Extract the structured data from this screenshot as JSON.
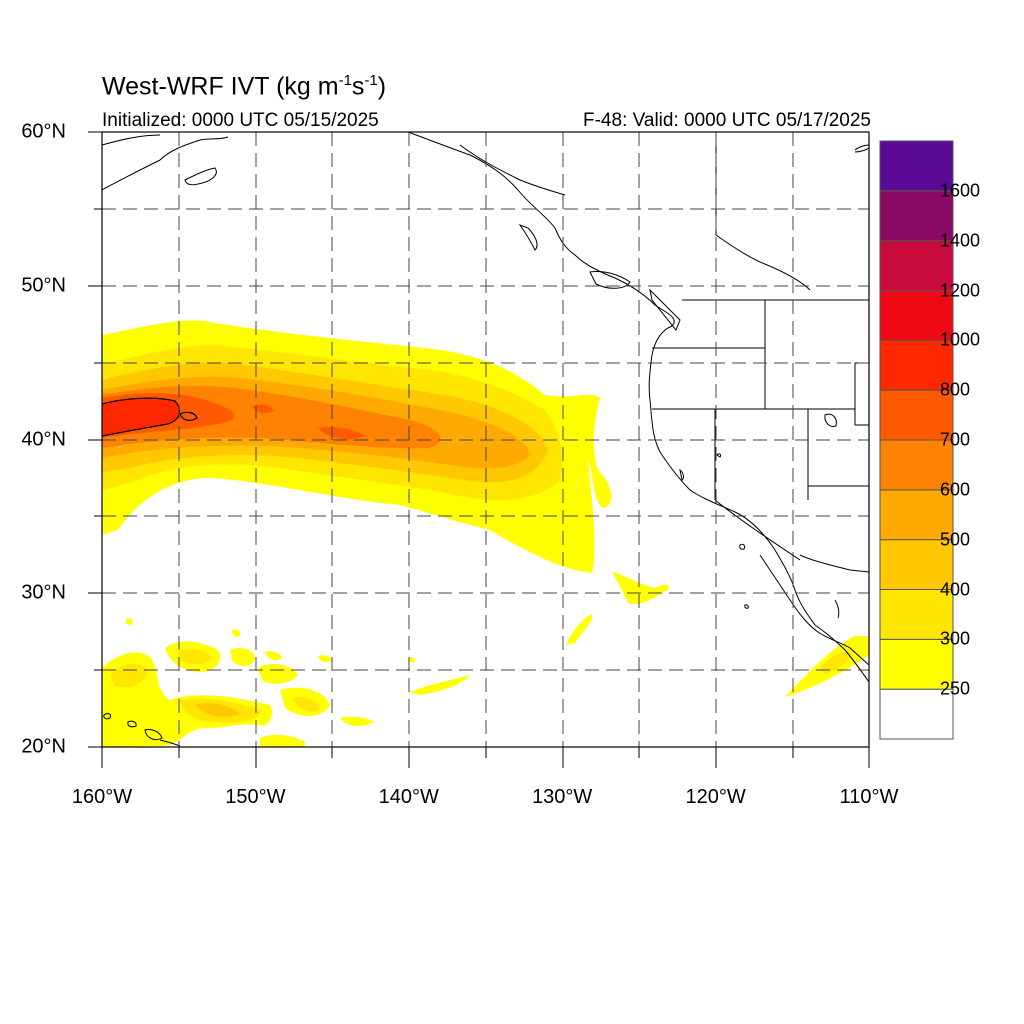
{
  "title": {
    "main": "West-WRF IVT (kg m",
    "exp1": "-1",
    "mid": "s",
    "exp2": "-1",
    "end": ")"
  },
  "subtitle_left": "Initialized: 0000 UTC 05/15/2025",
  "subtitle_right": "F-48: Valid: 0000 UTC 05/17/2025",
  "map": {
    "extent": {
      "lon_min": -160,
      "lon_max": -110,
      "lat_min": 20,
      "lat_max": 60
    },
    "lat_labels": [
      {
        "lat": 60,
        "text": "60°N"
      },
      {
        "lat": 50,
        "text": "50°N"
      },
      {
        "lat": 40,
        "text": "40°N"
      },
      {
        "lat": 30,
        "text": "30°N"
      },
      {
        "lat": 20,
        "text": "20°N"
      }
    ],
    "lon_labels": [
      {
        "lon": -160,
        "text": "160°W"
      },
      {
        "lon": -150,
        "text": "150°W"
      },
      {
        "lon": -140,
        "text": "140°W"
      },
      {
        "lon": -130,
        "text": "130°W"
      },
      {
        "lon": -120,
        "text": "120°W"
      },
      {
        "lon": -110,
        "text": "110°W"
      }
    ],
    "grid_lons": [
      -155,
      -150,
      -145,
      -140,
      -135,
      -130,
      -125,
      -120,
      -115
    ],
    "grid_lats": [
      25,
      30,
      35,
      40,
      45,
      50,
      55
    ]
  },
  "colorbar": {
    "levels": [
      {
        "value": 250,
        "color": "#ffff00",
        "label": "250"
      },
      {
        "value": 300,
        "color": "#ffe600",
        "label": "300"
      },
      {
        "value": 400,
        "color": "#ffc800",
        "label": "400"
      },
      {
        "value": 500,
        "color": "#ffaa00",
        "label": "500"
      },
      {
        "value": 600,
        "color": "#ff8200",
        "label": "600"
      },
      {
        "value": 700,
        "color": "#ff5a00",
        "label": "700"
      },
      {
        "value": 800,
        "color": "#ff2800",
        "label": "800"
      },
      {
        "value": 1000,
        "color": "#ee0a14",
        "label": "1000"
      },
      {
        "value": 1200,
        "color": "#c80a3c",
        "label": "1200"
      },
      {
        "value": 1400,
        "color": "#8c0a64",
        "label": "1400"
      },
      {
        "value": 1600,
        "color": "#5a0a96",
        "label": "1600"
      }
    ],
    "below_min_color": "#ffffff"
  }
}
